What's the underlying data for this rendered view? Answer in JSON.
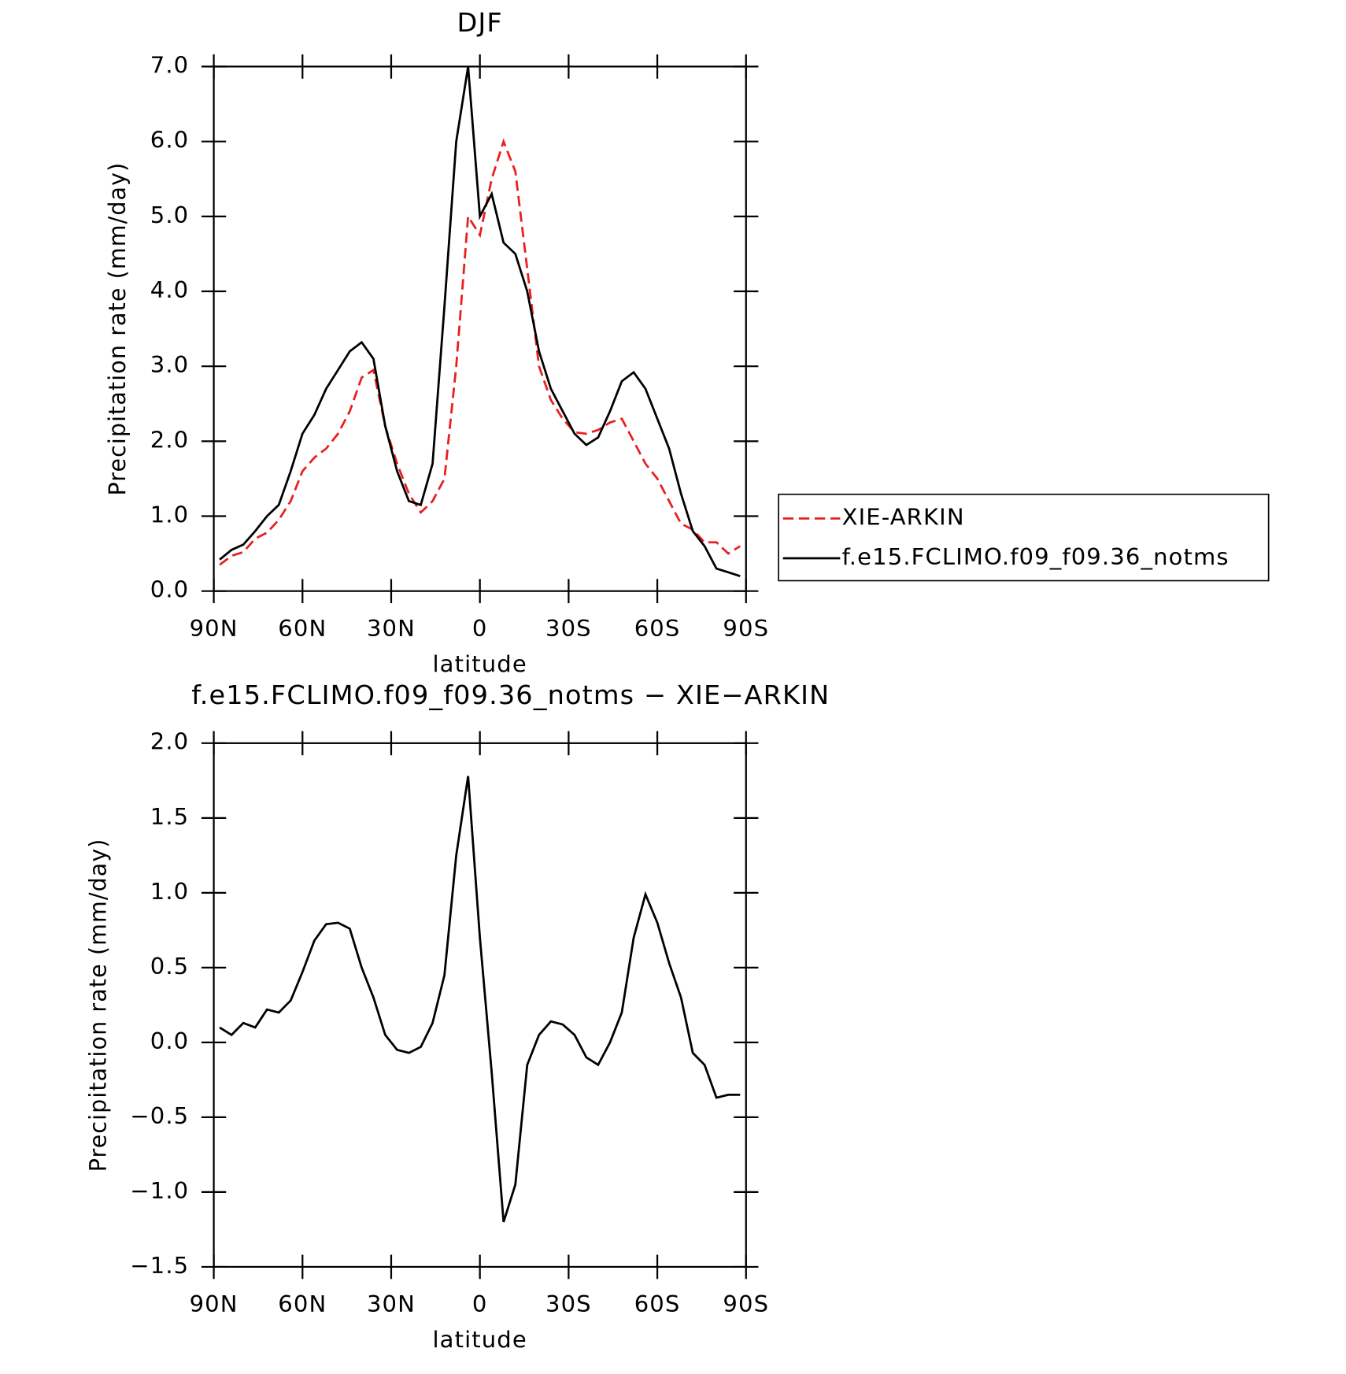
{
  "chart_data": [
    {
      "type": "line",
      "title": "DJF",
      "xlabel": "latitude",
      "ylabel": "Precipitation rate (mm/day)",
      "x": [
        88,
        84,
        80,
        76,
        72,
        68,
        64,
        60,
        56,
        52,
        48,
        44,
        40,
        36,
        32,
        28,
        24,
        20,
        16,
        12,
        8,
        4,
        0,
        -4,
        -8,
        -12,
        -16,
        -20,
        -24,
        -28,
        -32,
        -36,
        -40,
        -44,
        -48,
        -52,
        -56,
        -60,
        -64,
        -68,
        -72,
        -76,
        -80,
        -84,
        -88
      ],
      "series": [
        {
          "name": "XIE-ARKIN",
          "color": "#e8201f",
          "dash": true,
          "values": [
            0.35,
            0.47,
            0.52,
            0.7,
            0.78,
            0.95,
            1.2,
            1.6,
            1.78,
            1.9,
            2.1,
            2.4,
            2.85,
            2.95,
            2.2,
            1.7,
            1.3,
            1.05,
            1.2,
            1.5,
            3.0,
            5.0,
            4.75,
            5.5,
            6.0,
            5.6,
            4.3,
            3.0,
            2.55,
            2.3,
            2.12,
            2.1,
            2.15,
            2.25,
            2.3,
            2.0,
            1.7,
            1.5,
            1.2,
            0.9,
            0.82,
            0.65,
            0.65,
            0.5,
            0.6
          ]
        },
        {
          "name": "f.e15.FCLIMO.f09_f09.36_notms",
          "color": "#000000",
          "dash": false,
          "values": [
            0.42,
            0.55,
            0.62,
            0.8,
            1.0,
            1.15,
            1.6,
            2.1,
            2.35,
            2.7,
            2.95,
            3.2,
            3.32,
            3.1,
            2.2,
            1.6,
            1.2,
            1.15,
            1.7,
            3.8,
            6.0,
            7.0,
            5.0,
            5.3,
            4.65,
            4.5,
            4.0,
            3.2,
            2.7,
            2.4,
            2.1,
            1.95,
            2.05,
            2.4,
            2.8,
            2.92,
            2.7,
            2.3,
            1.9,
            1.3,
            0.8,
            0.6,
            0.3,
            0.25,
            0.2
          ]
        }
      ],
      "xlim": [
        90,
        -90
      ],
      "xticks": [
        {
          "value": 90,
          "label": "90N"
        },
        {
          "value": 60,
          "label": "60N"
        },
        {
          "value": 30,
          "label": "30N"
        },
        0,
        {
          "value": -30,
          "label": "30S"
        },
        {
          "value": -60,
          "label": "60S"
        },
        {
          "value": -90,
          "label": "90S"
        }
      ],
      "ylim": [
        0,
        7
      ],
      "yticks": [
        {
          "value": 0,
          "label": "0.0"
        },
        {
          "value": 1,
          "label": "1.0"
        },
        {
          "value": 2,
          "label": "2.0"
        },
        {
          "value": 3,
          "label": "3.0"
        },
        {
          "value": 4,
          "label": "4.0"
        },
        {
          "value": 5,
          "label": "5.0"
        },
        {
          "value": 6,
          "label": "6.0"
        },
        {
          "value": 7,
          "label": "7.0"
        }
      ],
      "legend": "right"
    },
    {
      "type": "line",
      "title": "f.e15.FCLIMO.f09_f09.36_notms − XIE−ARKIN",
      "xlabel": "latitude",
      "ylabel": "Precipitation rate (mm/day)",
      "x": [
        88,
        84,
        80,
        76,
        72,
        68,
        64,
        60,
        56,
        52,
        48,
        44,
        40,
        36,
        32,
        28,
        24,
        20,
        16,
        12,
        8,
        4,
        0,
        -4,
        -8,
        -12,
        -16,
        -20,
        -24,
        -28,
        -32,
        -36,
        -40,
        -44,
        -48,
        -52,
        -56,
        -60,
        -64,
        -68,
        -72,
        -76,
        -80,
        -84,
        -88
      ],
      "series": [
        {
          "color": "#000000",
          "dash": false,
          "values": [
            0.1,
            0.05,
            0.13,
            0.1,
            0.22,
            0.2,
            0.28,
            0.47,
            0.68,
            0.79,
            0.8,
            0.76,
            0.5,
            0.3,
            0.05,
            -0.05,
            -0.07,
            -0.03,
            0.13,
            0.45,
            1.25,
            1.78,
            0.7,
            -0.2,
            -1.2,
            -0.95,
            -0.15,
            0.05,
            0.14,
            0.12,
            0.05,
            -0.1,
            -0.15,
            0.0,
            0.2,
            0.7,
            0.99,
            0.8,
            0.53,
            0.3,
            -0.07,
            -0.15,
            -0.37,
            -0.35,
            -0.35
          ]
        }
      ],
      "xlim": [
        90,
        -90
      ],
      "xticks": [
        {
          "value": 90,
          "label": "90N"
        },
        {
          "value": 60,
          "label": "60N"
        },
        {
          "value": 30,
          "label": "30N"
        },
        0,
        {
          "value": -30,
          "label": "30S"
        },
        {
          "value": -60,
          "label": "60S"
        },
        {
          "value": -90,
          "label": "90S"
        }
      ],
      "ylim": [
        -1.5,
        2.0
      ],
      "yticks": [
        {
          "value": -1.5,
          "label": "−1.5"
        },
        {
          "value": -1.0,
          "label": "−1.0"
        },
        {
          "value": -0.5,
          "label": "−0.5"
        },
        {
          "value": 0,
          "label": "0.0"
        },
        {
          "value": 0.5,
          "label": "0.5"
        },
        {
          "value": 1.0,
          "label": "1.0"
        },
        {
          "value": 1.5,
          "label": "1.5"
        },
        {
          "value": 2.0,
          "label": "2.0"
        }
      ]
    }
  ]
}
